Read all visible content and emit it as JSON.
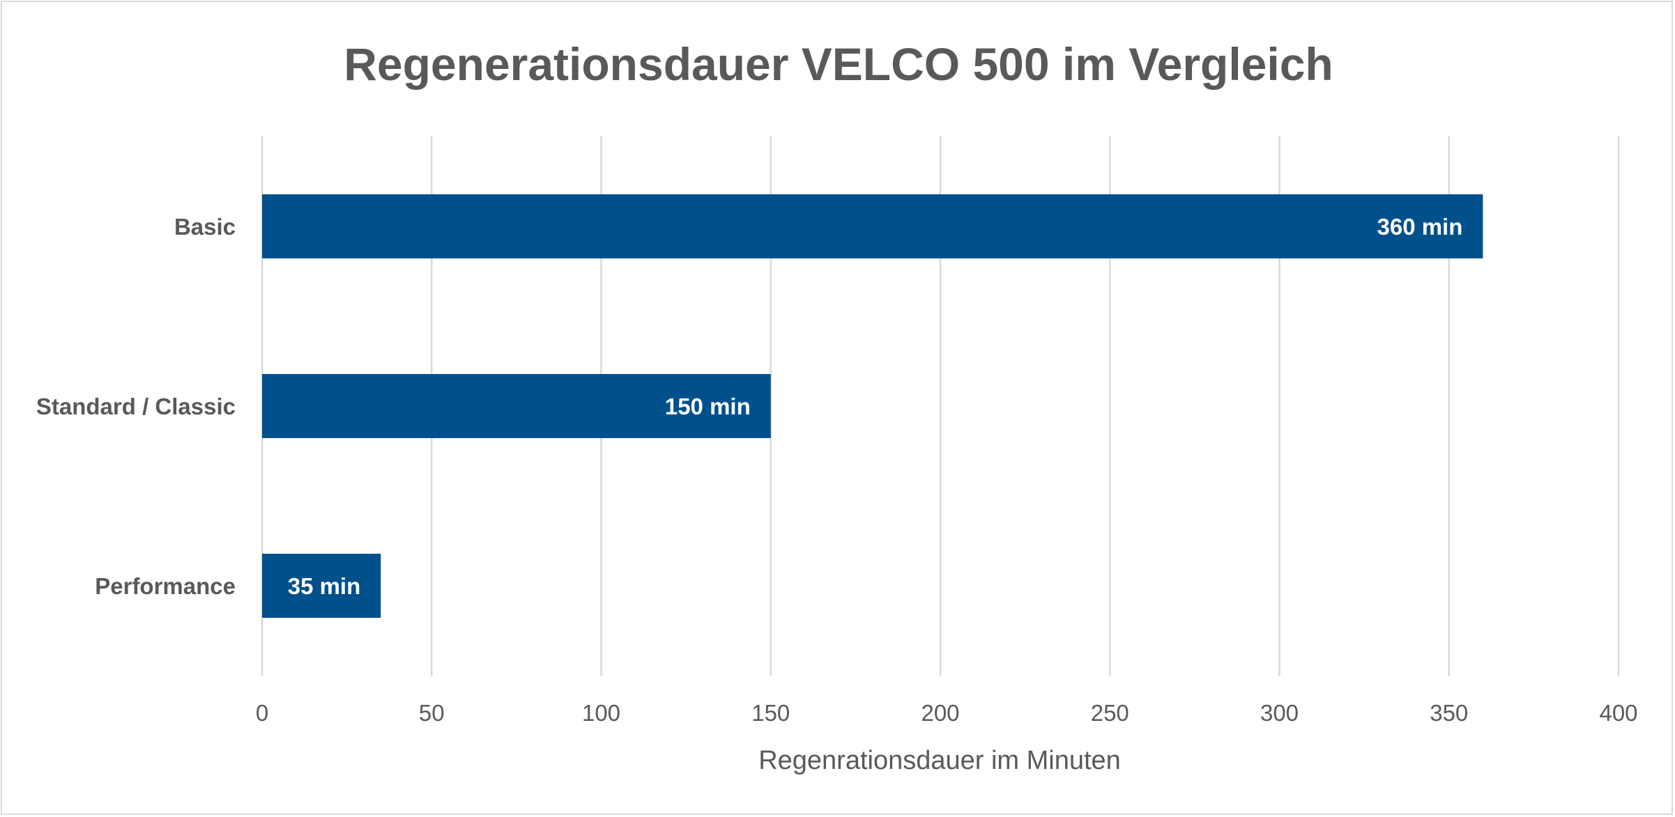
{
  "chart_data": {
    "type": "bar",
    "orientation": "horizontal",
    "title": "Regenerationsdauer VELCO 500 im Vergleich",
    "xlabel": "Regenrationsdauer im Minuten",
    "ylabel": "",
    "categories": [
      "Basic",
      "Standard / Classic",
      "Performance"
    ],
    "values": [
      360,
      150,
      35
    ],
    "data_labels": [
      "360 min",
      "150 min",
      "35 min"
    ],
    "xlim": [
      0,
      400
    ],
    "x_ticks": [
      0,
      50,
      100,
      150,
      200,
      250,
      300,
      350,
      400
    ],
    "grid": true,
    "legend": "none",
    "bar_color": "#00508B"
  }
}
